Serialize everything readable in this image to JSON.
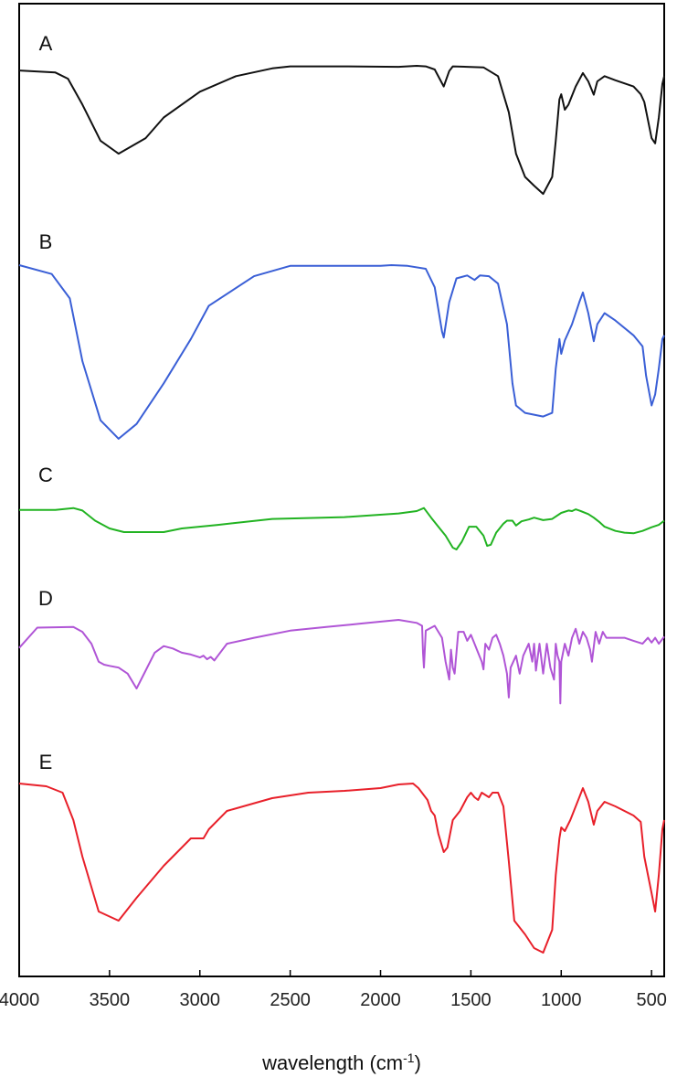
{
  "chart_data": {
    "type": "line",
    "title": "",
    "xlabel": "wavelength (cm",
    "xlabel_sup": "-1",
    "xlabel_close": ")",
    "ylabel": "",
    "xlim": [
      4000,
      430
    ],
    "x_reversed": true,
    "grid": false,
    "y_axis_ticks": false,
    "x_ticks": [
      4000,
      3500,
      3000,
      2500,
      2000,
      1500,
      1000,
      500
    ],
    "x_tick_labels": [
      "4000",
      "3500",
      "3000",
      "2500",
      "2000",
      "1500",
      "1000",
      "500"
    ],
    "series": [
      {
        "name": "A",
        "color": "#111111",
        "points": [
          [
            4000,
            9
          ],
          [
            3800,
            13
          ],
          [
            3730,
            25
          ],
          [
            3650,
            75
          ],
          [
            3550,
            145
          ],
          [
            3450,
            170
          ],
          [
            3300,
            140
          ],
          [
            3200,
            100
          ],
          [
            3000,
            50
          ],
          [
            2800,
            20
          ],
          [
            2600,
            5
          ],
          [
            2500,
            1
          ],
          [
            2200,
            1
          ],
          [
            1900,
            2
          ],
          [
            1800,
            0
          ],
          [
            1750,
            1
          ],
          [
            1700,
            7
          ],
          [
            1650,
            40
          ],
          [
            1620,
            10
          ],
          [
            1600,
            1
          ],
          [
            1430,
            3
          ],
          [
            1350,
            20
          ],
          [
            1290,
            90
          ],
          [
            1250,
            170
          ],
          [
            1200,
            215
          ],
          [
            1150,
            232
          ],
          [
            1100,
            248
          ],
          [
            1050,
            215
          ],
          [
            1030,
            145
          ],
          [
            1010,
            65
          ],
          [
            1000,
            55
          ],
          [
            980,
            85
          ],
          [
            960,
            75
          ],
          [
            920,
            40
          ],
          [
            880,
            14
          ],
          [
            850,
            30
          ],
          [
            820,
            56
          ],
          [
            800,
            30
          ],
          [
            760,
            20
          ],
          [
            700,
            28
          ],
          [
            600,
            40
          ],
          [
            560,
            55
          ],
          [
            540,
            70
          ],
          [
            500,
            140
          ],
          [
            480,
            150
          ],
          [
            460,
            100
          ],
          [
            440,
            35
          ],
          [
            430,
            20
          ]
        ]
      },
      {
        "name": "B",
        "color": "#3a5fd6",
        "points": [
          [
            4000,
            0
          ],
          [
            3820,
            12
          ],
          [
            3720,
            45
          ],
          [
            3650,
            130
          ],
          [
            3550,
            210
          ],
          [
            3450,
            235
          ],
          [
            3350,
            215
          ],
          [
            3200,
            160
          ],
          [
            3050,
            100
          ],
          [
            2950,
            55
          ],
          [
            2700,
            15
          ],
          [
            2500,
            1
          ],
          [
            2000,
            1
          ],
          [
            1940,
            0
          ],
          [
            1850,
            1
          ],
          [
            1750,
            5
          ],
          [
            1700,
            30
          ],
          [
            1660,
            90
          ],
          [
            1650,
            98
          ],
          [
            1620,
            50
          ],
          [
            1580,
            18
          ],
          [
            1520,
            14
          ],
          [
            1480,
            20
          ],
          [
            1450,
            14
          ],
          [
            1400,
            15
          ],
          [
            1350,
            25
          ],
          [
            1300,
            80
          ],
          [
            1270,
            160
          ],
          [
            1250,
            190
          ],
          [
            1200,
            200
          ],
          [
            1100,
            205
          ],
          [
            1050,
            200
          ],
          [
            1030,
            140
          ],
          [
            1010,
            100
          ],
          [
            1000,
            120
          ],
          [
            980,
            102
          ],
          [
            940,
            80
          ],
          [
            900,
            50
          ],
          [
            880,
            37
          ],
          [
            850,
            65
          ],
          [
            820,
            103
          ],
          [
            800,
            80
          ],
          [
            760,
            65
          ],
          [
            700,
            75
          ],
          [
            600,
            95
          ],
          [
            550,
            110
          ],
          [
            530,
            150
          ],
          [
            500,
            190
          ],
          [
            480,
            175
          ],
          [
            460,
            140
          ],
          [
            440,
            100
          ],
          [
            430,
            95
          ]
        ]
      },
      {
        "name": "C",
        "color": "#22b322",
        "points": [
          [
            4000,
            27
          ],
          [
            3800,
            27
          ],
          [
            3700,
            24
          ],
          [
            3650,
            28
          ],
          [
            3580,
            45
          ],
          [
            3500,
            58
          ],
          [
            3420,
            64
          ],
          [
            3200,
            64
          ],
          [
            3100,
            58
          ],
          [
            2900,
            52
          ],
          [
            2600,
            42
          ],
          [
            2200,
            39
          ],
          [
            1900,
            33
          ],
          [
            1800,
            29
          ],
          [
            1760,
            24
          ],
          [
            1720,
            40
          ],
          [
            1680,
            55
          ],
          [
            1640,
            70
          ],
          [
            1600,
            90
          ],
          [
            1580,
            93
          ],
          [
            1550,
            80
          ],
          [
            1510,
            55
          ],
          [
            1470,
            55
          ],
          [
            1430,
            70
          ],
          [
            1410,
            87
          ],
          [
            1390,
            85
          ],
          [
            1360,
            65
          ],
          [
            1320,
            50
          ],
          [
            1300,
            45
          ],
          [
            1270,
            45
          ],
          [
            1250,
            53
          ],
          [
            1220,
            46
          ],
          [
            1180,
            43
          ],
          [
            1150,
            40
          ],
          [
            1100,
            44
          ],
          [
            1050,
            42
          ],
          [
            1000,
            32
          ],
          [
            960,
            28
          ],
          [
            940,
            29
          ],
          [
            920,
            26
          ],
          [
            900,
            28
          ],
          [
            850,
            34
          ],
          [
            820,
            40
          ],
          [
            790,
            47
          ],
          [
            760,
            55
          ],
          [
            700,
            62
          ],
          [
            650,
            65
          ],
          [
            600,
            66
          ],
          [
            550,
            62
          ],
          [
            500,
            56
          ],
          [
            460,
            52
          ],
          [
            430,
            45
          ]
        ]
      },
      {
        "name": "D",
        "color": "#b055d6",
        "points": [
          [
            4000,
            47
          ],
          [
            3900,
            13
          ],
          [
            3700,
            12
          ],
          [
            3650,
            20
          ],
          [
            3600,
            40
          ],
          [
            3560,
            70
          ],
          [
            3530,
            75
          ],
          [
            3500,
            77
          ],
          [
            3450,
            80
          ],
          [
            3400,
            90
          ],
          [
            3350,
            115
          ],
          [
            3300,
            85
          ],
          [
            3250,
            55
          ],
          [
            3200,
            44
          ],
          [
            3150,
            48
          ],
          [
            3100,
            55
          ],
          [
            3050,
            58
          ],
          [
            3000,
            63
          ],
          [
            2980,
            60
          ],
          [
            2960,
            66
          ],
          [
            2940,
            62
          ],
          [
            2920,
            68
          ],
          [
            2900,
            60
          ],
          [
            2850,
            40
          ],
          [
            2700,
            30
          ],
          [
            2500,
            18
          ],
          [
            2300,
            12
          ],
          [
            2100,
            6
          ],
          [
            1900,
            0
          ],
          [
            1800,
            5
          ],
          [
            1770,
            10
          ],
          [
            1765,
            55
          ],
          [
            1760,
            80
          ],
          [
            1750,
            18
          ],
          [
            1700,
            10
          ],
          [
            1660,
            30
          ],
          [
            1640,
            70
          ],
          [
            1620,
            100
          ],
          [
            1610,
            50
          ],
          [
            1600,
            80
          ],
          [
            1590,
            90
          ],
          [
            1570,
            20
          ],
          [
            1540,
            20
          ],
          [
            1520,
            35
          ],
          [
            1500,
            25
          ],
          [
            1480,
            40
          ],
          [
            1460,
            55
          ],
          [
            1440,
            70
          ],
          [
            1430,
            83
          ],
          [
            1420,
            40
          ],
          [
            1400,
            50
          ],
          [
            1380,
            30
          ],
          [
            1360,
            25
          ],
          [
            1340,
            40
          ],
          [
            1320,
            60
          ],
          [
            1300,
            90
          ],
          [
            1290,
            130
          ],
          [
            1280,
            80
          ],
          [
            1250,
            60
          ],
          [
            1230,
            90
          ],
          [
            1210,
            60
          ],
          [
            1180,
            40
          ],
          [
            1160,
            70
          ],
          [
            1150,
            40
          ],
          [
            1140,
            85
          ],
          [
            1120,
            40
          ],
          [
            1100,
            90
          ],
          [
            1080,
            40
          ],
          [
            1060,
            80
          ],
          [
            1040,
            100
          ],
          [
            1030,
            40
          ],
          [
            1020,
            60
          ],
          [
            1010,
            70
          ],
          [
            1005,
            140
          ],
          [
            1000,
            70
          ],
          [
            980,
            40
          ],
          [
            960,
            60
          ],
          [
            940,
            30
          ],
          [
            920,
            15
          ],
          [
            900,
            40
          ],
          [
            880,
            20
          ],
          [
            860,
            30
          ],
          [
            840,
            50
          ],
          [
            830,
            70
          ],
          [
            810,
            20
          ],
          [
            790,
            40
          ],
          [
            770,
            20
          ],
          [
            750,
            30
          ],
          [
            700,
            30
          ],
          [
            650,
            30
          ],
          [
            600,
            35
          ],
          [
            550,
            40
          ],
          [
            520,
            30
          ],
          [
            500,
            38
          ],
          [
            480,
            30
          ],
          [
            460,
            40
          ],
          [
            430,
            28
          ]
        ]
      },
      {
        "name": "E",
        "color": "#e8202a",
        "points": [
          [
            4000,
            0
          ],
          [
            3850,
            3
          ],
          [
            3760,
            10
          ],
          [
            3700,
            40
          ],
          [
            3650,
            80
          ],
          [
            3560,
            140
          ],
          [
            3450,
            150
          ],
          [
            3350,
            125
          ],
          [
            3200,
            90
          ],
          [
            3050,
            60
          ],
          [
            2980,
            60
          ],
          [
            2950,
            50
          ],
          [
            2850,
            30
          ],
          [
            2600,
            16
          ],
          [
            2400,
            10
          ],
          [
            2200,
            8
          ],
          [
            2000,
            5
          ],
          [
            1900,
            1
          ],
          [
            1820,
            0
          ],
          [
            1790,
            5
          ],
          [
            1740,
            18
          ],
          [
            1720,
            30
          ],
          [
            1700,
            35
          ],
          [
            1680,
            55
          ],
          [
            1650,
            75
          ],
          [
            1630,
            70
          ],
          [
            1600,
            40
          ],
          [
            1560,
            30
          ],
          [
            1520,
            15
          ],
          [
            1500,
            10
          ],
          [
            1480,
            15
          ],
          [
            1460,
            18
          ],
          [
            1440,
            10
          ],
          [
            1400,
            15
          ],
          [
            1380,
            10
          ],
          [
            1350,
            10
          ],
          [
            1320,
            25
          ],
          [
            1290,
            85
          ],
          [
            1260,
            150
          ],
          [
            1200,
            165
          ],
          [
            1150,
            180
          ],
          [
            1100,
            185
          ],
          [
            1050,
            160
          ],
          [
            1030,
            100
          ],
          [
            1010,
            60
          ],
          [
            1000,
            48
          ],
          [
            980,
            52
          ],
          [
            950,
            40
          ],
          [
            900,
            15
          ],
          [
            880,
            5
          ],
          [
            850,
            20
          ],
          [
            820,
            45
          ],
          [
            800,
            30
          ],
          [
            760,
            20
          ],
          [
            700,
            25
          ],
          [
            600,
            35
          ],
          [
            560,
            42
          ],
          [
            540,
            80
          ],
          [
            500,
            120
          ],
          [
            480,
            140
          ],
          [
            460,
            100
          ],
          [
            440,
            50
          ],
          [
            430,
            40
          ]
        ]
      }
    ]
  }
}
